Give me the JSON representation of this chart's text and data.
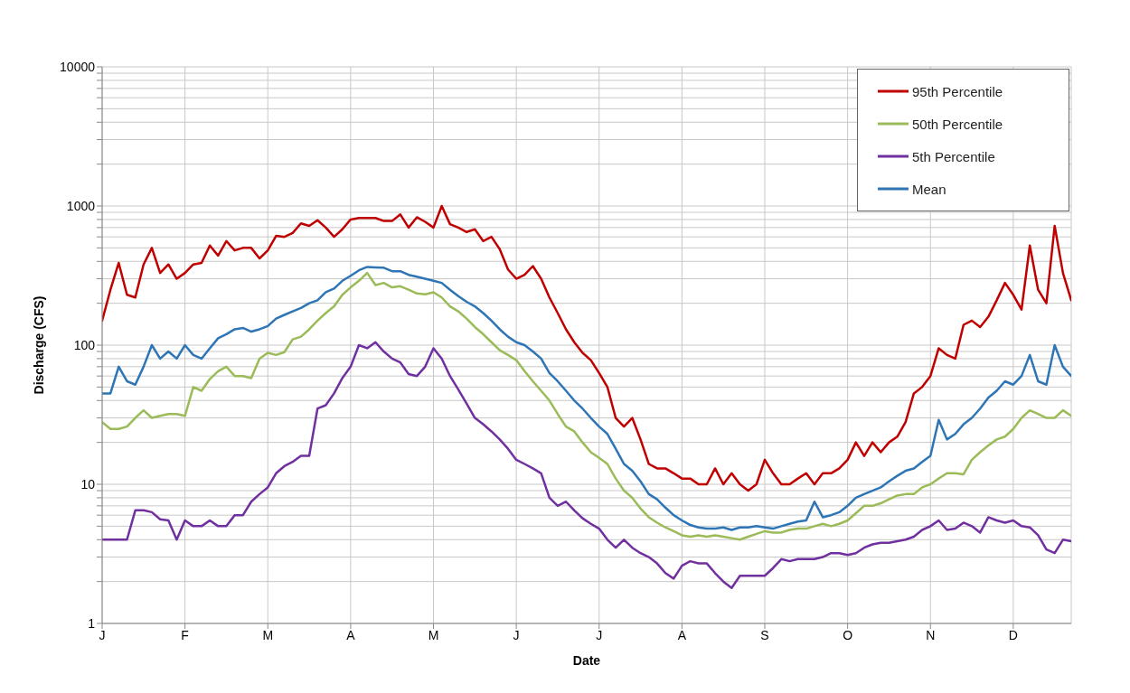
{
  "chart_data": {
    "type": "line",
    "xlabel": "Date",
    "ylabel": "Discharge (CFS)",
    "log": "y",
    "grid": true,
    "legend": "top right",
    "marker": "none",
    "line_style": "solid",
    "categories": [
      "J",
      null,
      null,
      null,
      null,
      null,
      null,
      null,
      null,
      null,
      "F",
      null,
      null,
      null,
      null,
      null,
      null,
      null,
      null,
      null,
      "M",
      null,
      null,
      null,
      null,
      null,
      null,
      null,
      null,
      null,
      "A",
      null,
      null,
      null,
      null,
      null,
      null,
      null,
      null,
      null,
      "M",
      null,
      null,
      null,
      null,
      null,
      null,
      null,
      null,
      null,
      "J",
      null,
      null,
      null,
      null,
      null,
      null,
      null,
      null,
      null,
      "J",
      null,
      null,
      null,
      null,
      null,
      null,
      null,
      null,
      null,
      "A",
      null,
      null,
      null,
      null,
      null,
      null,
      null,
      null,
      null,
      "S",
      null,
      null,
      null,
      null,
      null,
      null,
      null,
      null,
      null,
      "O",
      null,
      null,
      null,
      null,
      null,
      null,
      null,
      null,
      null,
      "N",
      null,
      null,
      null,
      null,
      null,
      null,
      null,
      null,
      null,
      "D",
      null,
      null,
      null,
      null,
      null,
      null,
      null
    ],
    "ylim": [
      1,
      10000
    ],
    "yticks": [
      1,
      {
        "value": 2,
        "label": null
      },
      {
        "value": 3,
        "label": null
      },
      {
        "value": 4,
        "label": null
      },
      {
        "value": 5,
        "label": null
      },
      {
        "value": 6,
        "label": null
      },
      {
        "value": 7,
        "label": null
      },
      {
        "value": 8,
        "label": null
      },
      {
        "value": 9,
        "label": null
      },
      10,
      {
        "value": 20,
        "label": null
      },
      {
        "value": 30,
        "label": null
      },
      {
        "value": 40,
        "label": null
      },
      {
        "value": 50,
        "label": null
      },
      {
        "value": 60,
        "label": null
      },
      {
        "value": 70,
        "label": null
      },
      {
        "value": 80,
        "label": null
      },
      {
        "value": 90,
        "label": null
      },
      100,
      {
        "value": 200,
        "label": null
      },
      {
        "value": 300,
        "label": null
      },
      {
        "value": 400,
        "label": null
      },
      {
        "value": 500,
        "label": null
      },
      {
        "value": 600,
        "label": null
      },
      {
        "value": 700,
        "label": null
      },
      {
        "value": 800,
        "label": null
      },
      {
        "value": 900,
        "label": null
      },
      1000,
      {
        "value": 2000,
        "label": null
      },
      {
        "value": 3000,
        "label": null
      },
      {
        "value": 4000,
        "label": null
      },
      {
        "value": 5000,
        "label": null
      },
      {
        "value": 6000,
        "label": null
      },
      {
        "value": 7000,
        "label": null
      },
      {
        "value": 8000,
        "label": null
      },
      {
        "value": 9000,
        "label": null
      },
      10000
    ],
    "series": [
      {
        "name": "95th Percentile",
        "color": "#c00000",
        "values": [
          150,
          250,
          390,
          230,
          220,
          380,
          500,
          330,
          380,
          300,
          330,
          380,
          390,
          520,
          440,
          560,
          480,
          500,
          500,
          420,
          480,
          610,
          600,
          640,
          750,
          720,
          790,
          700,
          600,
          680,
          800,
          820,
          820,
          820,
          780,
          780,
          870,
          700,
          830,
          770,
          700,
          1000,
          740,
          700,
          650,
          680,
          560,
          600,
          490,
          350,
          300,
          320,
          370,
          300,
          220,
          170,
          130,
          105,
          88,
          78,
          63,
          50,
          30,
          26,
          30,
          21,
          14,
          13,
          13,
          12,
          11,
          11,
          10,
          10,
          13,
          10,
          12,
          10,
          9,
          10,
          15,
          12,
          10,
          10,
          11,
          12,
          10,
          12,
          12,
          13,
          15,
          20,
          16,
          20,
          17,
          20,
          22,
          28,
          45,
          50,
          60,
          95,
          85,
          80,
          140,
          150,
          135,
          160,
          210,
          280,
          230,
          180,
          520,
          250,
          200,
          720,
          330,
          210
        ]
      },
      {
        "name": "50th Percentile",
        "color": "#9bbb59",
        "values": [
          28,
          25,
          25,
          26,
          30,
          34,
          30,
          31,
          32,
          32,
          31,
          50,
          47,
          57,
          65,
          70,
          60,
          60,
          58,
          80,
          88,
          85,
          89,
          110,
          115,
          130,
          150,
          170,
          190,
          230,
          260,
          290,
          330,
          270,
          280,
          260,
          265,
          250,
          235,
          232,
          240,
          220,
          190,
          175,
          155,
          135,
          120,
          105,
          92,
          85,
          78,
          65,
          55,
          47,
          40,
          32,
          26,
          24,
          20,
          17,
          15.5,
          14,
          11,
          9,
          8,
          6.7,
          5.8,
          5.3,
          4.9,
          4.6,
          4.3,
          4.2,
          4.3,
          4.2,
          4.3,
          4.2,
          4.1,
          4,
          4.2,
          4.4,
          4.6,
          4.5,
          4.5,
          4.7,
          4.8,
          4.8,
          5,
          5.2,
          5,
          5.2,
          5.5,
          6.2,
          7,
          7,
          7.3,
          7.8,
          8.3,
          8.5,
          8.5,
          9.5,
          10,
          11,
          12,
          12,
          11.8,
          15,
          17,
          19,
          21,
          22,
          25,
          30,
          34,
          32,
          30,
          30,
          34,
          31
        ]
      },
      {
        "name": "5th Percentile",
        "color": "#7030a0",
        "values": [
          4,
          4,
          4,
          4,
          6.5,
          6.5,
          6.3,
          5.6,
          5.5,
          4,
          5.5,
          5,
          5,
          5.5,
          5,
          5,
          6,
          6,
          7.5,
          8.5,
          9.5,
          12,
          13.5,
          14.5,
          16,
          16,
          35,
          37,
          45,
          58,
          70,
          100,
          95,
          105,
          90,
          80,
          75,
          62,
          60,
          70,
          95,
          80,
          60,
          48,
          38,
          30,
          27,
          24,
          21,
          18,
          15,
          14,
          13,
          12,
          8,
          7,
          7.5,
          6.5,
          5.7,
          5.2,
          4.8,
          4,
          3.5,
          4,
          3.5,
          3.2,
          3,
          2.7,
          2.3,
          2.1,
          2.6,
          2.8,
          2.7,
          2.7,
          2.3,
          2,
          1.8,
          2.2,
          2.2,
          2.2,
          2.2,
          2.5,
          2.9,
          2.8,
          2.9,
          2.9,
          2.9,
          3,
          3.2,
          3.2,
          3.1,
          3.2,
          3.5,
          3.7,
          3.8,
          3.8,
          3.9,
          4,
          4.2,
          4.7,
          5,
          5.5,
          4.7,
          4.8,
          5.3,
          5,
          4.5,
          5.8,
          5.5,
          5.3,
          5.5,
          5,
          4.9,
          4.3,
          3.4,
          3.2,
          4,
          3.9
        ]
      },
      {
        "name": "Mean",
        "color": "#2e75b6",
        "values": [
          45,
          45,
          70,
          55,
          52,
          70,
          100,
          80,
          90,
          80,
          100,
          85,
          80,
          95,
          112,
          120,
          130,
          133,
          125,
          130,
          137,
          155,
          165,
          175,
          185,
          200,
          210,
          240,
          255,
          290,
          315,
          345,
          365,
          362,
          360,
          340,
          340,
          320,
          310,
          300,
          290,
          280,
          250,
          225,
          205,
          190,
          170,
          150,
          130,
          115,
          105,
          100,
          90,
          80,
          63,
          55,
          47,
          40,
          35,
          30,
          26,
          23,
          18,
          14,
          12.5,
          10.5,
          8.5,
          7.8,
          6.8,
          6,
          5.5,
          5.1,
          4.9,
          4.8,
          4.8,
          4.9,
          4.7,
          4.9,
          4.9,
          5,
          4.9,
          4.8,
          5,
          5.2,
          5.4,
          5.5,
          7.5,
          5.8,
          6,
          6.3,
          7,
          8,
          8.5,
          9,
          9.5,
          10.5,
          11.5,
          12.5,
          13,
          14.5,
          16,
          29,
          21,
          23,
          27,
          30,
          35,
          42,
          47,
          55,
          52,
          60,
          85,
          55,
          52,
          100,
          70,
          60
        ]
      }
    ]
  }
}
